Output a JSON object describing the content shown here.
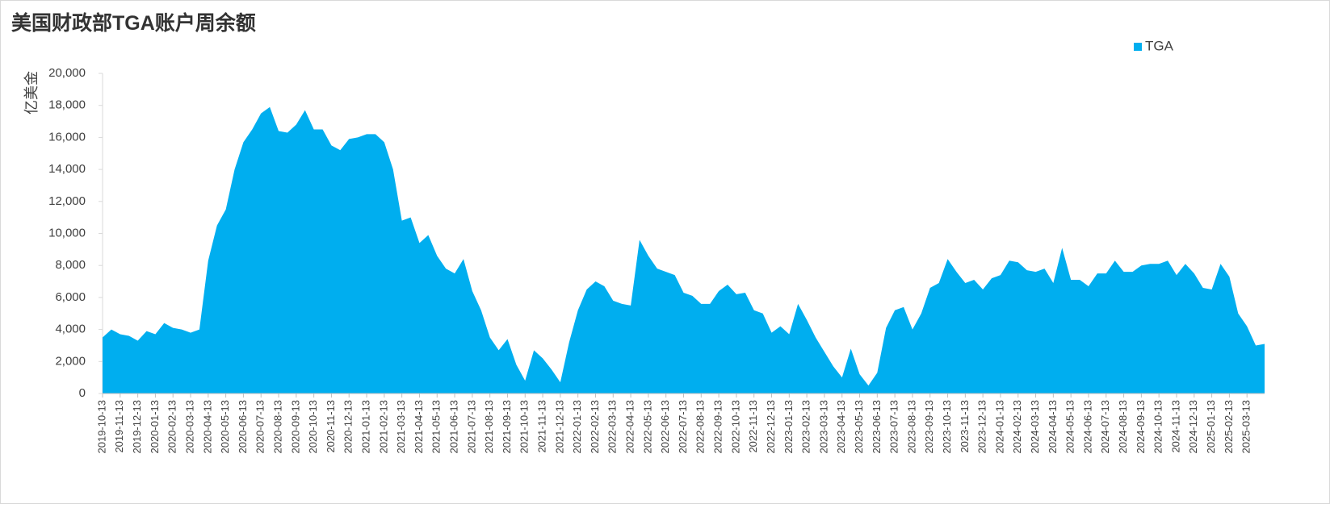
{
  "chart_data": {
    "type": "area",
    "title": "美国财政部TGA账户周余额",
    "y_label": "亿美金",
    "categories": [
      "2019-10-13",
      null,
      "2019-11-13",
      null,
      "2019-12-13",
      null,
      "2020-01-13",
      null,
      "2020-02-13",
      null,
      "2020-03-13",
      null,
      "2020-04-13",
      null,
      "2020-05-13",
      null,
      "2020-06-13",
      null,
      "2020-07-13",
      null,
      "2020-08-13",
      null,
      "2020-09-13",
      null,
      "2020-10-13",
      null,
      "2020-11-13",
      null,
      "2020-12-13",
      null,
      "2021-01-13",
      null,
      "2021-02-13",
      null,
      "2021-03-13",
      null,
      "2021-04-13",
      null,
      "2021-05-13",
      null,
      "2021-06-13",
      null,
      "2021-07-13",
      null,
      "2021-08-13",
      null,
      "2021-09-13",
      null,
      "2021-10-13",
      null,
      "2021-11-13",
      null,
      "2021-12-13",
      null,
      "2022-01-13",
      null,
      "2022-02-13",
      null,
      "2022-03-13",
      null,
      "2022-04-13",
      null,
      "2022-05-13",
      null,
      "2022-06-13",
      null,
      "2022-07-13",
      null,
      "2022-08-13",
      null,
      "2022-09-13",
      null,
      "2022-10-13",
      null,
      "2022-11-13",
      null,
      "2022-12-13",
      null,
      "2023-01-13",
      null,
      "2023-02-13",
      null,
      "2023-03-13",
      null,
      "2023-04-13",
      null,
      "2023-05-13",
      null,
      "2023-06-13",
      null,
      "2023-07-13",
      null,
      "2023-08-13",
      null,
      "2023-09-13",
      null,
      "2023-10-13",
      null,
      "2023-11-13",
      null,
      "2023-12-13",
      null,
      "2024-01-13",
      null,
      "2024-02-13",
      null,
      "2024-03-13",
      null,
      "2024-04-13",
      null,
      "2024-05-13",
      null,
      "2024-06-13",
      null,
      "2024-07-13",
      null,
      "2024-08-13",
      null,
      "2024-09-13",
      null,
      "2024-10-13",
      null,
      "2024-11-13",
      null,
      "2024-12-13",
      null,
      "2025-01-13",
      null,
      "2025-02-13",
      null,
      "2025-03-13",
      null,
      null
    ],
    "series": [
      {
        "name": "TGA",
        "color": "#00aeef",
        "values": [
          3500,
          4000,
          3700,
          3600,
          3300,
          3900,
          3700,
          4400,
          4100,
          4000,
          3800,
          4000,
          8300,
          10500,
          11500,
          14000,
          15700,
          16500,
          17500,
          17900,
          16400,
          16300,
          16800,
          17700,
          16500,
          16500,
          15500,
          15200,
          15900,
          16000,
          16200,
          16200,
          15700,
          14000,
          10800,
          11000,
          9400,
          9900,
          8600,
          7800,
          7500,
          8400,
          6400,
          5200,
          3500,
          2700,
          3400,
          1800,
          800,
          2700,
          2200,
          1500,
          700,
          3200,
          5200,
          6500,
          7000,
          6700,
          5800,
          5600,
          5500,
          9600,
          8600,
          7800,
          7600,
          7400,
          6300,
          6100,
          5600,
          5600,
          6400,
          6800,
          6200,
          6300,
          5200,
          5000,
          3800,
          4200,
          3700,
          5600,
          4600,
          3500,
          2600,
          1700,
          1000,
          2800,
          1200,
          500,
          1300,
          4100,
          5200,
          5400,
          4000,
          5000,
          6600,
          6900,
          8400,
          7600,
          6900,
          7100,
          6500,
          7200,
          7400,
          8300,
          8200,
          7700,
          7600,
          7800,
          6900,
          9100,
          7100,
          7100,
          6700,
          7500,
          7500,
          8300,
          7600,
          7600,
          8000,
          8100,
          8100,
          8300,
          7400,
          8100,
          7500,
          6600,
          6500,
          8100,
          7300,
          5000,
          4200,
          3000,
          3100
        ]
      }
    ],
    "ylim": [
      0,
      20000
    ],
    "yticks": [
      0,
      {
        "value": 2000,
        "label": "2,000"
      },
      {
        "value": 4000,
        "label": "4,000"
      },
      {
        "value": 6000,
        "label": "6,000"
      },
      {
        "value": 8000,
        "label": "8,000"
      },
      {
        "value": 10000,
        "label": "10,000"
      },
      {
        "value": 12000,
        "label": "12,000"
      },
      {
        "value": 14000,
        "label": "14,000"
      },
      {
        "value": 16000,
        "label": "16,000"
      },
      {
        "value": 18000,
        "label": "18,000"
      },
      {
        "value": 20000,
        "label": "20,000"
      }
    ],
    "grid": false,
    "legend": "top-right"
  }
}
